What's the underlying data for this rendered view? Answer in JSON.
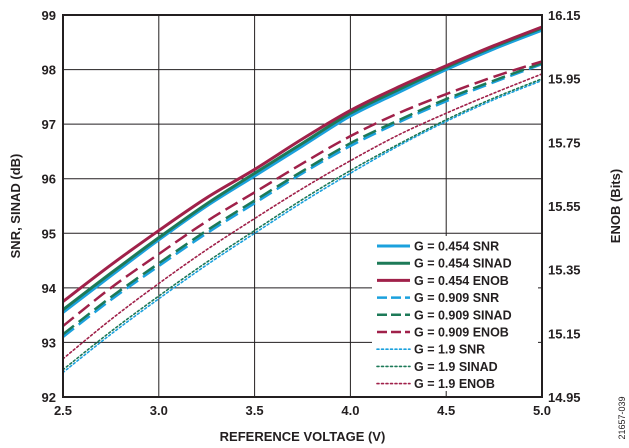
{
  "chart_data": {
    "type": "line",
    "title": "",
    "xlabel": "REFERENCE VOLTAGE (V)",
    "ylabel": "SNR, SINAD (dB)",
    "y2label": "ENOB (Bits)",
    "xlim": [
      2.5,
      5.0
    ],
    "ylim": [
      92,
      99
    ],
    "y2lim": [
      14.95,
      16.15
    ],
    "xticks": [
      "2.5",
      "3.0",
      "3.5",
      "4.0",
      "4.5",
      "5.0"
    ],
    "yticks": [
      "92",
      "93",
      "94",
      "95",
      "96",
      "97",
      "98",
      "99"
    ],
    "y2ticks": [
      "14.95",
      "15.15",
      "15.35",
      "15.55",
      "15.75",
      "15.95",
      "16.15"
    ],
    "grid": true,
    "legend_position": "bottom-right",
    "figure_id": "21657-039",
    "x": [
      2.5,
      2.75,
      3.0,
      3.25,
      3.5,
      3.75,
      4.0,
      4.25,
      4.5,
      4.75,
      5.0
    ],
    "series": [
      {
        "name": "G = 0.454 SNR",
        "color": "#1ba1dd",
        "dash": "solid",
        "axis": "left",
        "values": [
          93.55,
          94.22,
          94.88,
          95.5,
          96.05,
          96.6,
          97.15,
          97.58,
          98.0,
          98.38,
          98.72
        ]
      },
      {
        "name": "G = 0.454 SINAD",
        "color": "#1d7a58",
        "dash": "solid",
        "axis": "left",
        "values": [
          93.6,
          94.27,
          94.92,
          95.54,
          96.1,
          96.65,
          97.2,
          97.63,
          98.04,
          98.42,
          98.76
        ]
      },
      {
        "name": "G = 0.454 ENOB",
        "color": "#a0214a",
        "dash": "solid",
        "axis": "left",
        "values": [
          93.75,
          94.42,
          95.05,
          95.65,
          96.17,
          96.73,
          97.25,
          97.68,
          98.07,
          98.44,
          98.78
        ]
      },
      {
        "name": "G = 0.909 SNR",
        "color": "#1ba1dd",
        "dash": "dashed",
        "axis": "left",
        "values": [
          93.1,
          93.78,
          94.4,
          95.0,
          95.55,
          96.1,
          96.6,
          97.03,
          97.42,
          97.77,
          98.1
        ]
      },
      {
        "name": "G = 0.909 SINAD",
        "color": "#1d7a58",
        "dash": "dashed",
        "axis": "left",
        "values": [
          93.15,
          93.83,
          94.45,
          95.05,
          95.6,
          96.14,
          96.65,
          97.07,
          97.46,
          97.8,
          98.12
        ]
      },
      {
        "name": "G = 0.909 ENOB",
        "color": "#a0214a",
        "dash": "dashed",
        "axis": "left",
        "values": [
          93.3,
          94.0,
          94.62,
          95.22,
          95.75,
          96.28,
          96.78,
          97.2,
          97.55,
          97.87,
          98.15
        ]
      },
      {
        "name": "G = 1.9 SNR",
        "color": "#1ba1dd",
        "dash": "dotted",
        "axis": "left",
        "values": [
          92.45,
          93.15,
          93.8,
          94.42,
          95.0,
          95.57,
          96.1,
          96.6,
          97.05,
          97.45,
          97.8
        ]
      },
      {
        "name": "G = 1.9 SINAD",
        "color": "#1d7a58",
        "dash": "dotted",
        "axis": "left",
        "values": [
          92.5,
          93.2,
          93.85,
          94.47,
          95.05,
          95.62,
          96.15,
          96.63,
          97.08,
          97.48,
          97.83
        ]
      },
      {
        "name": "G = 1.9 ENOB",
        "color": "#a0214a",
        "dash": "dotted",
        "axis": "left",
        "values": [
          92.7,
          93.42,
          94.08,
          94.7,
          95.27,
          95.82,
          96.33,
          96.8,
          97.2,
          97.57,
          97.92
        ]
      }
    ]
  }
}
